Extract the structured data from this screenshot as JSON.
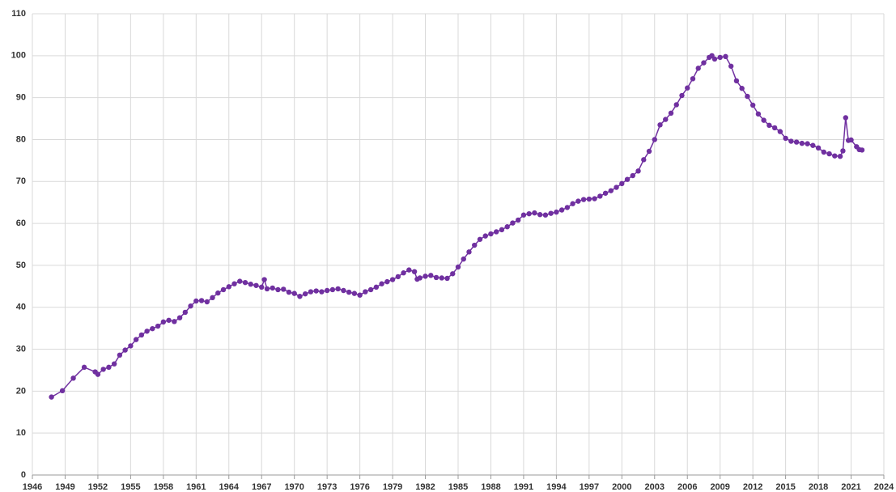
{
  "chart_data": {
    "type": "line",
    "color": "#7030a0",
    "grid": true,
    "x": [
      1947.75,
      1948.75,
      1949.75,
      1950.75,
      1951.75,
      1952,
      1952.5,
      1953,
      1953.5,
      1954,
      1954.5,
      1955,
      1955.5,
      1956,
      1956.5,
      1957,
      1957.5,
      1958,
      1958.5,
      1959,
      1959.5,
      1960,
      1960.5,
      1961,
      1961.5,
      1962,
      1962.5,
      1963,
      1963.5,
      1964,
      1964.5,
      1965,
      1965.5,
      1966,
      1966.5,
      1967,
      1967.25,
      1967.5,
      1968,
      1968.5,
      1969,
      1969.5,
      1970,
      1970.5,
      1971,
      1971.5,
      1972,
      1972.5,
      1973,
      1973.5,
      1974,
      1974.5,
      1975,
      1975.5,
      1976,
      1976.5,
      1977,
      1977.5,
      1978,
      1978.5,
      1979,
      1979.5,
      1980,
      1980.5,
      1981,
      1981.25,
      1981.5,
      1982,
      1982.5,
      1983,
      1983.5,
      1984,
      1984.5,
      1985,
      1985.5,
      1986,
      1986.5,
      1987,
      1987.5,
      1988,
      1988.5,
      1989,
      1989.5,
      1990,
      1990.5,
      1991,
      1991.5,
      1992,
      1992.5,
      1993,
      1993.5,
      1994,
      1994.5,
      1995,
      1995.5,
      1996,
      1996.5,
      1997,
      1997.5,
      1998,
      1998.5,
      1999,
      1999.5,
      2000,
      2000.5,
      2001,
      2001.5,
      2002,
      2002.5,
      2003,
      2003.5,
      2004,
      2004.5,
      2005,
      2005.5,
      2006,
      2006.5,
      2007,
      2007.5,
      2008,
      2008.25,
      2008.5,
      2009,
      2009.5,
      2010,
      2010.5,
      2011,
      2011.5,
      2012,
      2012.5,
      2013,
      2013.5,
      2014,
      2014.5,
      2015,
      2015.5,
      2016,
      2016.5,
      2017,
      2017.5,
      2018,
      2018.5,
      2019,
      2019.5,
      2020,
      2020.25,
      2020.5,
      2020.75,
      2021,
      2021.5,
      2021.75,
      2022
    ],
    "values": [
      18.6,
      20.1,
      23.1,
      25.7,
      24.6,
      24.0,
      25.2,
      25.7,
      26.5,
      28.6,
      29.8,
      30.8,
      32.3,
      33.4,
      34.3,
      34.9,
      35.5,
      36.5,
      36.9,
      36.6,
      37.5,
      38.8,
      40.3,
      41.5,
      41.6,
      41.3,
      42.3,
      43.4,
      44.2,
      44.9,
      45.6,
      46.2,
      45.9,
      45.5,
      45.2,
      44.8,
      46.6,
      44.4,
      44.6,
      44.2,
      44.3,
      43.6,
      43.3,
      42.6,
      43.2,
      43.7,
      43.9,
      43.7,
      44.0,
      44.2,
      44.4,
      44.0,
      43.6,
      43.3,
      42.9,
      43.7,
      44.2,
      44.8,
      45.6,
      46.1,
      46.6,
      47.3,
      48.2,
      48.9,
      48.5,
      46.7,
      47.0,
      47.4,
      47.6,
      47.1,
      47.0,
      46.9,
      48.0,
      49.6,
      51.5,
      53.2,
      54.8,
      56.2,
      57.0,
      57.5,
      58.0,
      58.5,
      59.2,
      60.1,
      60.8,
      62.0,
      62.3,
      62.5,
      62.1,
      62.0,
      62.4,
      62.7,
      63.2,
      63.8,
      64.7,
      65.3,
      65.7,
      65.8,
      65.9,
      66.5,
      67.2,
      67.8,
      68.6,
      69.5,
      70.5,
      71.4,
      72.5,
      75.2,
      77.2,
      80.0,
      83.5,
      84.8,
      86.3,
      88.3,
      90.5,
      92.3,
      94.5,
      97.0,
      98.3,
      99.6,
      100.0,
      99.2,
      99.6,
      99.8,
      97.5,
      94.0,
      92.2,
      90.3,
      88.2,
      86.1,
      84.6,
      83.4,
      82.8,
      81.9,
      80.3,
      79.6,
      79.4,
      79.1,
      79.0,
      78.6,
      78.0,
      77.0,
      76.6,
      76.1,
      76.0,
      77.3,
      85.2,
      79.8,
      79.9,
      78.3,
      77.6,
      77.5
    ],
    "xlim": [
      1946,
      2024
    ],
    "xticks": [
      1946,
      1949,
      1952,
      1955,
      1958,
      1961,
      1964,
      1967,
      1970,
      1973,
      1976,
      1979,
      1982,
      1985,
      1988,
      1991,
      1994,
      1997,
      2000,
      2003,
      2006,
      2009,
      2012,
      2015,
      2018,
      2021,
      2024
    ],
    "ylim": [
      0,
      110
    ],
    "yticks": [
      0,
      10,
      20,
      30,
      40,
      50,
      60,
      70,
      80,
      90,
      100,
      110
    ]
  }
}
